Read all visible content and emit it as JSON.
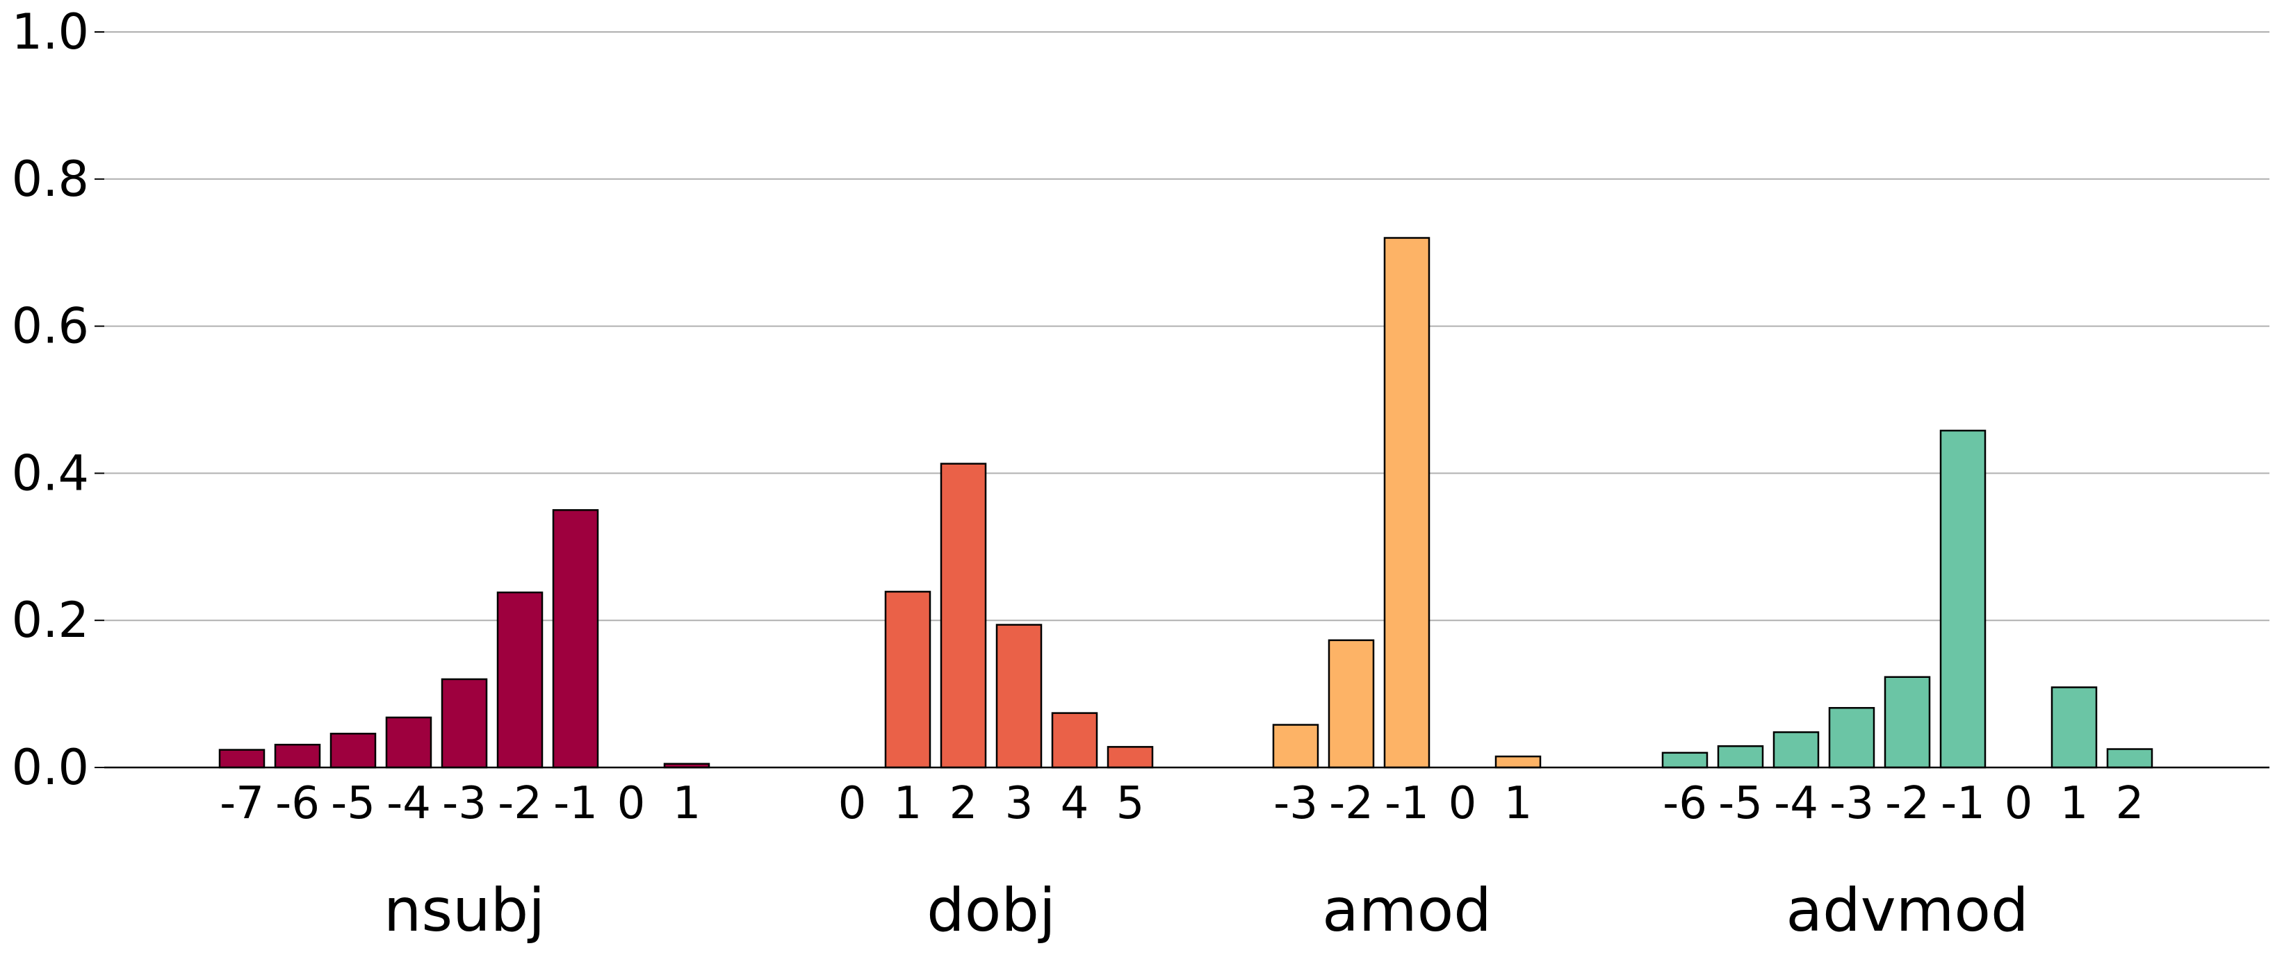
{
  "chart_data": {
    "type": "bar",
    "title": "",
    "xlabel": "",
    "ylabel": "",
    "ylim": [
      0,
      1.0
    ],
    "yticks": [
      "0.0",
      "0.2",
      "0.4",
      "0.6",
      "0.8",
      "1.0"
    ],
    "grid": "horizontal",
    "legend": "none",
    "groups": [
      {
        "name": "nsubj",
        "color": "#9e003e",
        "categories": [
          "-7",
          "-6",
          "-5",
          "-4",
          "-3",
          "-2",
          "-1",
          "0",
          "1"
        ],
        "values": [
          0.024,
          0.031,
          0.046,
          0.068,
          0.12,
          0.238,
          0.35,
          0.0,
          0.005
        ]
      },
      {
        "name": "dobj",
        "color": "#ea6148",
        "categories": [
          "0",
          "1",
          "2",
          "3",
          "4",
          "5"
        ],
        "values": [
          0.0,
          0.239,
          0.413,
          0.194,
          0.074,
          0.028
        ]
      },
      {
        "name": "amod",
        "color": "#fdb366",
        "categories": [
          "-3",
          "-2",
          "-1",
          "0",
          "1"
        ],
        "values": [
          0.058,
          0.173,
          0.72,
          0.0,
          0.015
        ]
      },
      {
        "name": "advmod",
        "color": "#6bc5a5",
        "categories": [
          "-6",
          "-5",
          "-4",
          "-3",
          "-2",
          "-1",
          "0",
          "1",
          "2"
        ],
        "values": [
          0.02,
          0.029,
          0.048,
          0.081,
          0.123,
          0.458,
          0.0,
          0.109,
          0.025
        ]
      }
    ]
  }
}
